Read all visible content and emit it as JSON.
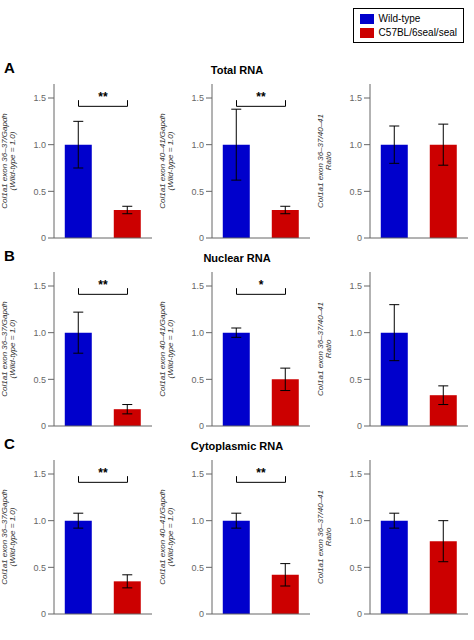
{
  "chart_data": [
    {
      "type": "bar",
      "title": "A",
      "categories": [
        null,
        null
      ],
      "series": [
        {
          "name": "Wild-type",
          "color": "#0000cc",
          "values": [
            1.0,
            null
          ],
          "errors": [
            0.25,
            null
          ]
        },
        {
          "name": "C57BL/6seal/seal",
          "color": "#cc0000",
          "values": [
            null,
            0.3
          ],
          "errors": [
            null,
            0.04
          ]
        }
      ],
      "ylabel": "Col1a1 exon 36–37/Gapdh\n(Wild-type = 1.0)",
      "annotations": [
        "**"
      ],
      "ylim": [
        0,
        1.65
      ],
      "yticks": [
        0,
        0.5,
        {
          "value": 1.0,
          "label": "1.0"
        },
        1.5
      ],
      "grid": false,
      "tick_labels": "y"
    },
    {
      "type": "bar",
      "title": "Total RNA",
      "categories": [
        null,
        null
      ],
      "series": [
        {
          "name": "Wild-type",
          "color": "#0000cc",
          "values": [
            1.0,
            null
          ],
          "errors": [
            0.38,
            null
          ]
        },
        {
          "name": "C57BL/6seal/seal",
          "color": "#cc0000",
          "values": [
            null,
            0.3
          ],
          "errors": [
            null,
            0.04
          ]
        }
      ],
      "ylabel": "Col1a1 exon 40–41/Gapdh\n(Wild-type = 1.0)",
      "annotations": [
        "**"
      ],
      "ylim": [
        0,
        1.65
      ],
      "yticks": [
        0,
        0.5,
        {
          "value": 1.0,
          "label": "1.0"
        },
        1.5
      ],
      "grid": false,
      "tick_labels": "y"
    },
    {
      "type": "bar",
      "categories": [
        null,
        null
      ],
      "series": [
        {
          "name": "Wild-type",
          "color": "#0000cc",
          "values": [
            1.0,
            null
          ],
          "errors": [
            0.2,
            null
          ]
        },
        {
          "name": "C57BL/6seal/seal",
          "color": "#cc0000",
          "values": [
            null,
            1.0
          ],
          "errors": [
            null,
            0.22
          ]
        }
      ],
      "ylabel": "Col1a1 exon 36–37/40–41\nRatio",
      "ylim": [
        0,
        1.65
      ],
      "yticks": [
        0,
        0.5,
        {
          "value": 1.0,
          "label": "1.0"
        },
        1.5
      ],
      "grid": false,
      "tick_labels": "y"
    },
    {
      "type": "bar",
      "title": "B",
      "categories": [
        null,
        null
      ],
      "series": [
        {
          "name": "Wild-type",
          "color": "#0000cc",
          "values": [
            1.0,
            null
          ],
          "errors": [
            0.22,
            null
          ]
        },
        {
          "name": "C57BL/6seal/seal",
          "color": "#cc0000",
          "values": [
            null,
            0.18
          ],
          "errors": [
            null,
            0.05
          ]
        }
      ],
      "ylabel": "Col1a1 exon 36–37/Gapdh\n(Wild-type = 1.0)",
      "annotations": [
        "**"
      ],
      "ylim": [
        0,
        1.65
      ],
      "yticks": [
        0,
        0.5,
        {
          "value": 1.0,
          "label": "1.0"
        },
        1.5
      ],
      "grid": false,
      "tick_labels": "y"
    },
    {
      "type": "bar",
      "title": "Nuclear RNA",
      "categories": [
        null,
        null
      ],
      "series": [
        {
          "name": "Wild-type",
          "color": "#0000cc",
          "values": [
            1.0,
            null
          ],
          "errors": [
            0.05,
            null
          ]
        },
        {
          "name": "C57BL/6seal/seal",
          "color": "#cc0000",
          "values": [
            null,
            0.5
          ],
          "errors": [
            null,
            0.12
          ]
        }
      ],
      "ylabel": "Col1a1 exon 40–41/Gapdh\n(Wild-type = 1.0)",
      "annotations": [
        "*"
      ],
      "ylim": [
        0,
        1.65
      ],
      "yticks": [
        0,
        0.5,
        {
          "value": 1.0,
          "label": "1.0"
        },
        1.5
      ],
      "grid": false,
      "tick_labels": "y"
    },
    {
      "type": "bar",
      "categories": [
        null,
        null
      ],
      "series": [
        {
          "name": "Wild-type",
          "color": "#0000cc",
          "values": [
            1.0,
            null
          ],
          "errors": [
            0.3,
            null
          ]
        },
        {
          "name": "C57BL/6seal/seal",
          "color": "#cc0000",
          "values": [
            null,
            0.33
          ],
          "errors": [
            null,
            0.1
          ]
        }
      ],
      "ylabel": "Col1a1 exon 36–37/40–41\nRatio",
      "ylim": [
        0,
        1.65
      ],
      "yticks": [
        0,
        0.5,
        {
          "value": 1.0,
          "label": "1.0"
        },
        1.5
      ],
      "grid": false,
      "tick_labels": "y"
    },
    {
      "type": "bar",
      "title": "C",
      "categories": [
        null,
        null
      ],
      "series": [
        {
          "name": "Wild-type",
          "color": "#0000cc",
          "values": [
            1.0,
            null
          ],
          "errors": [
            0.08,
            null
          ]
        },
        {
          "name": "C57BL/6seal/seal",
          "color": "#cc0000",
          "values": [
            null,
            0.35
          ],
          "errors": [
            null,
            0.07
          ]
        }
      ],
      "ylabel": "Col1a1 exon 36–37/Gapdh\n(Wild-type = 1.0)",
      "annotations": [
        "**"
      ],
      "ylim": [
        0,
        1.65
      ],
      "yticks": [
        0,
        0.5,
        {
          "value": 1.0,
          "label": "1.0"
        },
        1.5
      ],
      "grid": false,
      "tick_labels": "y"
    },
    {
      "type": "bar",
      "title": "Cytoplasmic RNA",
      "categories": [
        null,
        null
      ],
      "series": [
        {
          "name": "Wild-type",
          "color": "#0000cc",
          "values": [
            1.0,
            null
          ],
          "errors": [
            0.08,
            null
          ]
        },
        {
          "name": "C57BL/6seal/seal",
          "color": "#cc0000",
          "values": [
            null,
            0.42
          ],
          "errors": [
            null,
            0.12
          ]
        }
      ],
      "ylabel": "Col1a1 exon 40–41/Gapdh\n(Wild-type = 1.0)",
      "annotations": [
        "**"
      ],
      "ylim": [
        0,
        1.65
      ],
      "yticks": [
        0,
        0.5,
        {
          "value": 1.0,
          "label": "1.0"
        },
        1.5
      ],
      "grid": false,
      "tick_labels": "y"
    },
    {
      "type": "bar",
      "categories": [
        null,
        null
      ],
      "series": [
        {
          "name": "Wild-type",
          "color": "#0000cc",
          "values": [
            1.0,
            null
          ],
          "errors": [
            0.08,
            null
          ]
        },
        {
          "name": "C57BL/6seal/seal",
          "color": "#cc0000",
          "values": [
            null,
            0.78
          ],
          "errors": [
            null,
            0.22
          ]
        }
      ],
      "ylabel": "Col1a1 exon 36–37/40–41\nRatio",
      "ylim": [
        0,
        1.65
      ],
      "yticks": [
        0,
        0.5,
        {
          "value": 1.0,
          "label": "1.0"
        },
        1.5
      ],
      "grid": false,
      "tick_labels": "y"
    }
  ]
}
